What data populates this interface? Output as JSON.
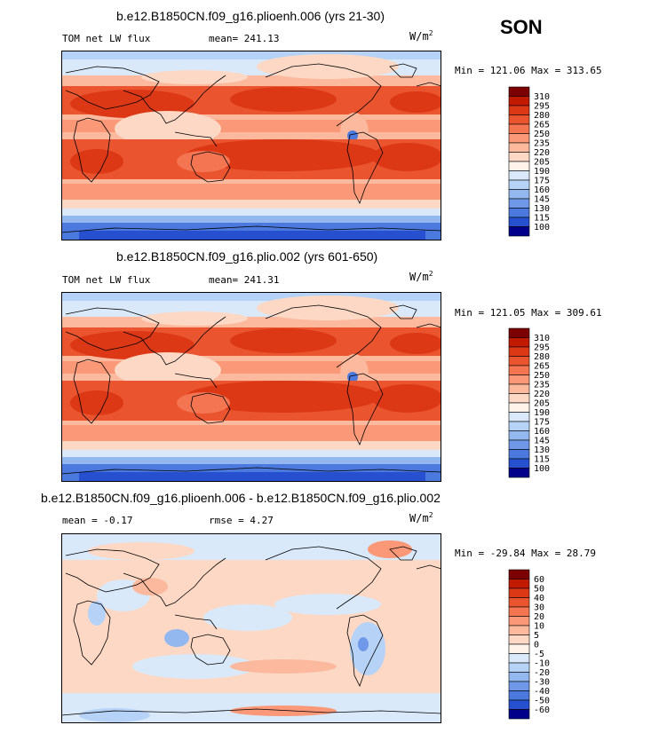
{
  "season": "SON",
  "unit_base": "W/m",
  "unit_exp": "2",
  "panels": [
    {
      "title": "b.e12.B1850CN.f09_g16.plioenh.006 (yrs 21-30)",
      "left_label": "TOM net LW flux",
      "stat": "mean= 241.13",
      "minmax": "Min = 121.06  Max = 313.65",
      "colorbar_labels": [
        "310",
        "295",
        "280",
        "265",
        "250",
        "235",
        "220",
        "205",
        "190",
        "175",
        "160",
        "145",
        "130",
        "115",
        "100"
      ],
      "colors": [
        "#7d0000",
        "#c01a00",
        "#dc3816",
        "#ea5530",
        "#f47552",
        "#fa9878",
        "#fcb99e",
        "#fdd8c5",
        "#fff3ea",
        "#d9e9fa",
        "#b6d3f7",
        "#93b8f0",
        "#6f99e8",
        "#4c79de",
        "#2650cf",
        "#00008a"
      ]
    },
    {
      "title": "b.e12.B1850CN.f09_g16.plio.002 (yrs 601-650)",
      "left_label": "TOM net LW flux",
      "stat": "mean= 241.31",
      "minmax": "Min = 121.05  Max = 309.61",
      "colorbar_labels": [
        "310",
        "295",
        "280",
        "265",
        "250",
        "235",
        "220",
        "205",
        "190",
        "175",
        "160",
        "145",
        "130",
        "115",
        "100"
      ],
      "colors": [
        "#7d0000",
        "#c01a00",
        "#dc3816",
        "#ea5530",
        "#f47552",
        "#fa9878",
        "#fcb99e",
        "#fdd8c5",
        "#fff3ea",
        "#d9e9fa",
        "#b6d3f7",
        "#93b8f0",
        "#6f99e8",
        "#4c79de",
        "#2650cf",
        "#00008a"
      ]
    },
    {
      "title": "b.e12.B1850CN.f09_g16.plioenh.006 - b.e12.B1850CN.f09_g16.plio.002",
      "left_label": "mean =   -0.17",
      "stat": "rmse =    4.27",
      "minmax": "Min = -29.84  Max =  28.79",
      "colorbar_labels": [
        "60",
        "50",
        "40",
        "30",
        "20",
        "10",
        "5",
        "0",
        "-5",
        "-10",
        "-20",
        "-30",
        "-40",
        "-50",
        "-60"
      ],
      "colors": [
        "#7d0000",
        "#c01a00",
        "#dc3816",
        "#ea5530",
        "#f47552",
        "#fa9878",
        "#fcb99e",
        "#fdd8c5",
        "#fff3ea",
        "#d9e9fa",
        "#b6d3f7",
        "#93b8f0",
        "#6f99e8",
        "#4c79de",
        "#2650cf",
        "#00008a"
      ]
    }
  ]
}
